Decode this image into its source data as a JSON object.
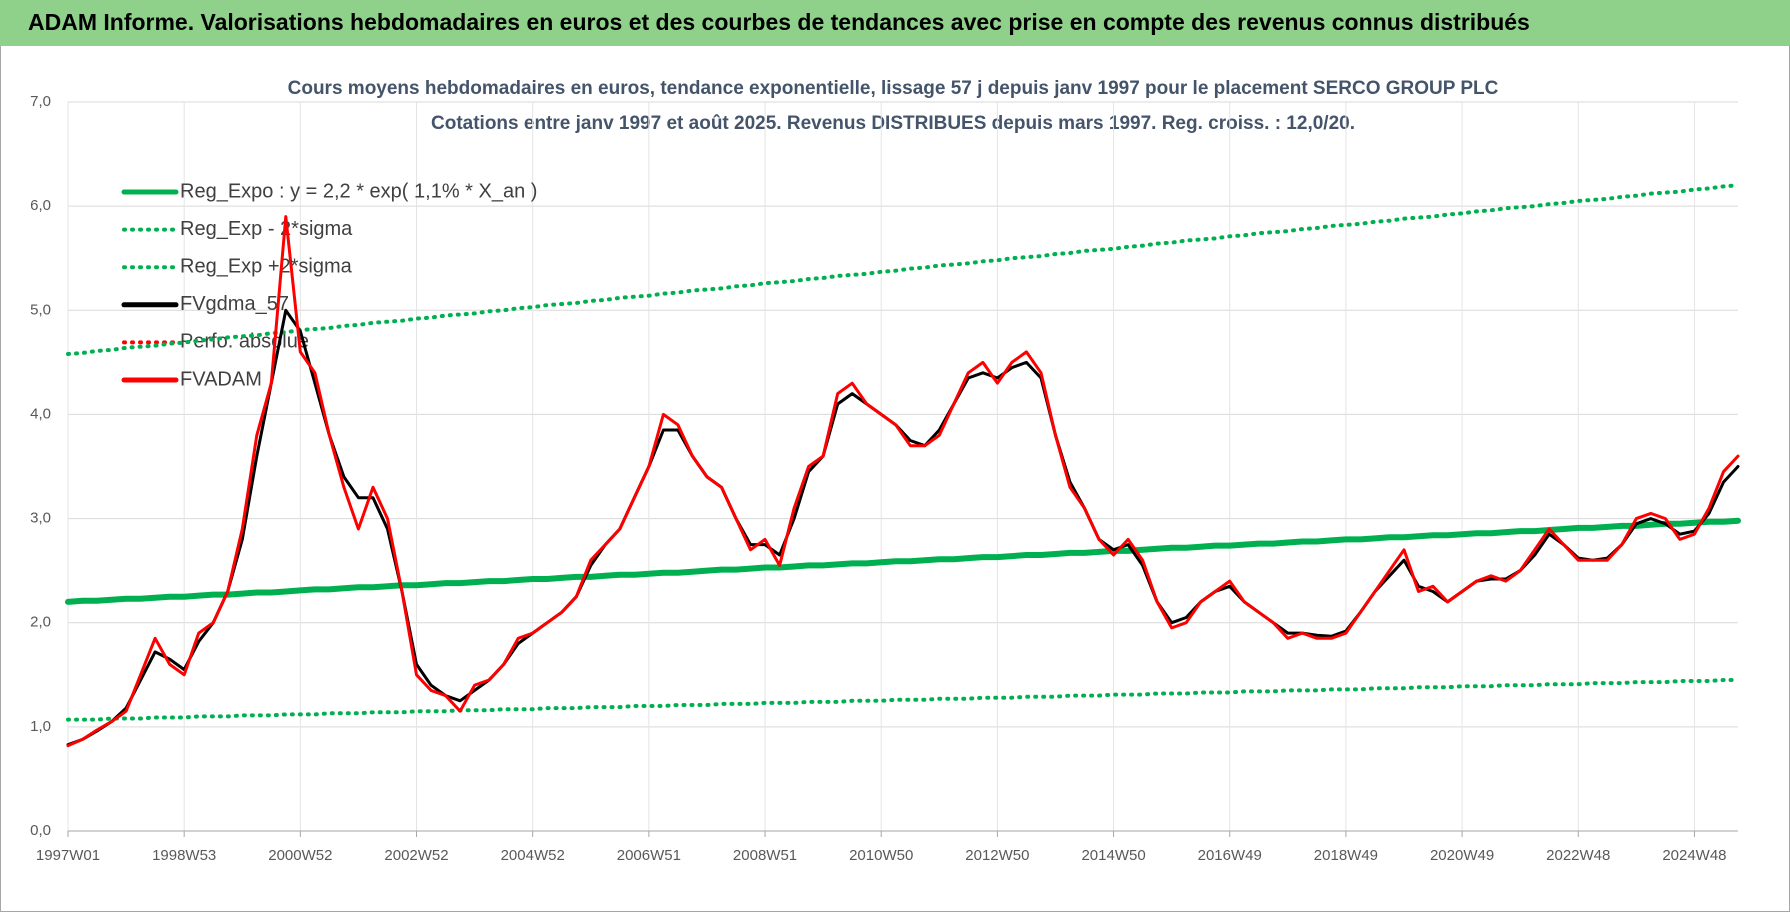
{
  "chart_data": {
    "type": "line",
    "title": "ADAM Informe. Valorisations hebdomadaires en euros et des courbes de tendances avec prise en compte des revenus connus distribués",
    "subtitle": [
      "Cours moyens hebdomadaires en euros, tendance exponentielle, lissage 57 j depuis janv 1997  pour le placement SERCO GROUP PLC",
      "Cotations entre janv 1997 et août 2025.  Revenus DISTRIBUES depuis mars 1997. Reg. croiss. : 12,0/20."
    ],
    "categories": [
      "1997W01",
      null,
      null,
      null,
      null,
      null,
      null,
      null,
      "1998W53",
      null,
      null,
      null,
      null,
      null,
      null,
      null,
      "2000W52",
      null,
      null,
      null,
      null,
      null,
      null,
      null,
      "2002W52",
      null,
      null,
      null,
      null,
      null,
      null,
      null,
      "2004W52",
      null,
      null,
      null,
      null,
      null,
      null,
      null,
      "2006W51",
      null,
      null,
      null,
      null,
      null,
      null,
      null,
      "2008W51",
      null,
      null,
      null,
      null,
      null,
      null,
      null,
      "2010W50",
      null,
      null,
      null,
      null,
      null,
      null,
      null,
      "2012W50",
      null,
      null,
      null,
      null,
      null,
      null,
      null,
      "2014W50",
      null,
      null,
      null,
      null,
      null,
      null,
      null,
      "2016W49",
      null,
      null,
      null,
      null,
      null,
      null,
      null,
      "2018W49",
      null,
      null,
      null,
      null,
      null,
      null,
      null,
      "2020W49",
      null,
      null,
      null,
      null,
      null,
      null,
      null,
      "2022W48",
      null,
      null,
      null,
      null,
      null,
      null,
      null,
      "2024W48",
      null,
      null,
      null
    ],
    "ylim": [
      0,
      7
    ],
    "yticks": [
      {
        "value": 0,
        "label": "0,0"
      },
      {
        "value": 1,
        "label": "1,0"
      },
      {
        "value": 2,
        "label": "2,0"
      },
      {
        "value": 3,
        "label": "3,0"
      },
      {
        "value": 4,
        "label": "4,0"
      },
      {
        "value": 5,
        "label": "5,0"
      },
      {
        "value": 6,
        "label": "6,0"
      },
      {
        "value": 7,
        "label": "7,0"
      }
    ],
    "grid": true,
    "legend": "upper left",
    "series": [
      {
        "name": "Reg_Expo : y = 2,2 * exp( 1,1% *  X_an )",
        "color": "#00b050",
        "style": "solid",
        "values": [
          2.2,
          2.21,
          2.21,
          2.22,
          2.23,
          2.23,
          2.24,
          2.25,
          2.25,
          2.26,
          2.27,
          2.27,
          2.28,
          2.29,
          2.29,
          2.3,
          2.31,
          2.32,
          2.32,
          2.33,
          2.34,
          2.34,
          2.35,
          2.36,
          2.36,
          2.37,
          2.38,
          2.38,
          2.39,
          2.4,
          2.4,
          2.41,
          2.42,
          2.42,
          2.43,
          2.44,
          2.44,
          2.45,
          2.46,
          2.46,
          2.47,
          2.48,
          2.48,
          2.49,
          2.5,
          2.51,
          2.51,
          2.52,
          2.53,
          2.53,
          2.54,
          2.55,
          2.55,
          2.56,
          2.57,
          2.57,
          2.58,
          2.59,
          2.59,
          2.6,
          2.61,
          2.61,
          2.62,
          2.63,
          2.63,
          2.64,
          2.65,
          2.65,
          2.66,
          2.67,
          2.67,
          2.68,
          2.69,
          2.69,
          2.7,
          2.71,
          2.72,
          2.72,
          2.73,
          2.74,
          2.74,
          2.75,
          2.76,
          2.76,
          2.77,
          2.78,
          2.78,
          2.79,
          2.8,
          2.8,
          2.81,
          2.82,
          2.82,
          2.83,
          2.84,
          2.84,
          2.85,
          2.86,
          2.86,
          2.87,
          2.88,
          2.88,
          2.89,
          2.9,
          2.91,
          2.91,
          2.92,
          2.93,
          2.93,
          2.94,
          2.95,
          2.95,
          2.96,
          2.97,
          2.97,
          2.98
        ]
      },
      {
        "name": "Reg_Exp - 2*sigma",
        "color": "#00b050",
        "style": "dotted",
        "values": [
          1.07,
          1.07,
          1.07,
          1.08,
          1.08,
          1.08,
          1.09,
          1.09,
          1.09,
          1.1,
          1.1,
          1.1,
          1.11,
          1.11,
          1.11,
          1.12,
          1.12,
          1.12,
          1.13,
          1.13,
          1.13,
          1.14,
          1.14,
          1.14,
          1.15,
          1.15,
          1.15,
          1.16,
          1.16,
          1.16,
          1.17,
          1.17,
          1.17,
          1.18,
          1.18,
          1.18,
          1.19,
          1.19,
          1.19,
          1.2,
          1.2,
          1.2,
          1.21,
          1.21,
          1.21,
          1.22,
          1.22,
          1.22,
          1.23,
          1.23,
          1.23,
          1.24,
          1.24,
          1.24,
          1.25,
          1.25,
          1.25,
          1.26,
          1.26,
          1.26,
          1.27,
          1.27,
          1.27,
          1.28,
          1.28,
          1.28,
          1.29,
          1.29,
          1.29,
          1.3,
          1.3,
          1.3,
          1.31,
          1.31,
          1.31,
          1.32,
          1.32,
          1.32,
          1.33,
          1.33,
          1.33,
          1.34,
          1.34,
          1.34,
          1.35,
          1.35,
          1.35,
          1.36,
          1.36,
          1.36,
          1.37,
          1.37,
          1.37,
          1.38,
          1.38,
          1.38,
          1.39,
          1.39,
          1.39,
          1.4,
          1.4,
          1.4,
          1.41,
          1.41,
          1.41,
          1.42,
          1.42,
          1.42,
          1.43,
          1.43,
          1.43,
          1.44,
          1.44,
          1.44,
          1.45,
          1.45
        ]
      },
      {
        "name": "Reg_Exp +2*sigma",
        "color": "#00b050",
        "style": "dotted",
        "values": [
          4.58,
          4.59,
          4.61,
          4.62,
          4.64,
          4.65,
          4.66,
          4.68,
          4.69,
          4.71,
          4.72,
          4.74,
          4.75,
          4.76,
          4.78,
          4.79,
          4.81,
          4.82,
          4.83,
          4.85,
          4.86,
          4.88,
          4.89,
          4.9,
          4.92,
          4.93,
          4.95,
          4.96,
          4.97,
          4.99,
          5.0,
          5.02,
          5.03,
          5.05,
          5.06,
          5.07,
          5.09,
          5.1,
          5.12,
          5.13,
          5.14,
          5.16,
          5.17,
          5.19,
          5.2,
          5.21,
          5.23,
          5.24,
          5.26,
          5.27,
          5.28,
          5.3,
          5.31,
          5.33,
          5.34,
          5.35,
          5.37,
          5.38,
          5.4,
          5.41,
          5.43,
          5.44,
          5.45,
          5.47,
          5.48,
          5.5,
          5.51,
          5.52,
          5.54,
          5.55,
          5.57,
          5.58,
          5.59,
          5.61,
          5.62,
          5.64,
          5.65,
          5.67,
          5.68,
          5.69,
          5.71,
          5.72,
          5.74,
          5.75,
          5.76,
          5.78,
          5.79,
          5.81,
          5.82,
          5.83,
          5.85,
          5.86,
          5.88,
          5.89,
          5.9,
          5.92,
          5.93,
          5.95,
          5.96,
          5.98,
          5.99,
          6.0,
          6.02,
          6.03,
          6.05,
          6.06,
          6.07,
          6.09,
          6.1,
          6.12,
          6.13,
          6.14,
          6.16,
          6.17,
          6.19,
          6.2
        ]
      },
      {
        "name": "FVgdma_57",
        "color": "#000000",
        "style": "solid",
        "values": [
          0.83,
          0.88,
          0.96,
          1.05,
          1.18,
          1.45,
          1.72,
          1.65,
          1.55,
          1.82,
          2.0,
          2.3,
          2.8,
          3.6,
          4.3,
          5.0,
          4.8,
          4.3,
          3.8,
          3.4,
          3.2,
          3.2,
          2.9,
          2.3,
          1.6,
          1.4,
          1.3,
          1.25,
          1.35,
          1.45,
          1.6,
          1.8,
          1.9,
          2.0,
          2.1,
          2.25,
          2.55,
          2.75,
          2.9,
          3.2,
          3.5,
          3.85,
          3.85,
          3.6,
          3.4,
          3.3,
          3.0,
          2.75,
          2.75,
          2.65,
          3.0,
          3.45,
          3.6,
          4.1,
          4.2,
          4.1,
          4.0,
          3.9,
          3.75,
          3.7,
          3.85,
          4.1,
          4.35,
          4.4,
          4.35,
          4.45,
          4.5,
          4.35,
          3.8,
          3.35,
          3.1,
          2.8,
          2.7,
          2.75,
          2.55,
          2.2,
          2.0,
          2.05,
          2.2,
          2.3,
          2.35,
          2.2,
          2.1,
          2.0,
          1.9,
          1.9,
          1.88,
          1.87,
          1.92,
          2.1,
          2.3,
          2.45,
          2.6,
          2.35,
          2.3,
          2.2,
          2.3,
          2.4,
          2.42,
          2.42,
          2.5,
          2.65,
          2.85,
          2.75,
          2.62,
          2.6,
          2.62,
          2.75,
          2.95,
          3.0,
          2.95,
          2.85,
          2.88,
          3.05,
          3.35,
          3.5
        ]
      },
      {
        "name": "Perfo. absolue",
        "color": "#ff0000",
        "style": "dotted",
        "values": [
          null,
          null,
          null,
          null,
          null,
          null,
          null,
          null,
          null,
          null,
          null,
          null,
          null,
          null,
          null,
          null,
          null,
          null,
          null,
          null,
          null,
          null,
          null,
          null,
          null,
          null,
          null,
          null,
          null,
          null,
          null,
          null,
          null,
          null,
          null,
          null,
          null,
          null,
          null,
          null,
          null,
          null,
          null,
          null,
          null,
          null,
          null,
          null,
          null,
          null,
          null,
          null,
          null,
          null,
          null,
          null,
          null,
          null,
          null,
          null,
          null,
          null,
          null,
          null,
          null,
          null,
          null,
          null,
          null,
          null,
          null,
          null,
          null,
          null,
          null,
          null,
          null,
          null,
          null,
          null,
          null,
          null,
          null,
          null,
          null,
          null,
          null,
          null,
          null,
          null,
          null,
          null,
          null,
          null,
          null,
          null,
          null,
          null,
          null,
          null,
          null,
          null,
          null,
          null,
          null,
          null,
          null,
          null,
          null,
          null,
          null,
          null,
          null,
          null,
          null,
          null
        ]
      },
      {
        "name": "FVADAM",
        "color": "#ff0000",
        "style": "solid",
        "values": [
          0.82,
          0.88,
          0.97,
          1.05,
          1.15,
          1.5,
          1.85,
          1.6,
          1.5,
          1.9,
          2.0,
          2.3,
          2.9,
          3.8,
          4.3,
          5.9,
          4.6,
          4.4,
          3.8,
          3.3,
          2.9,
          3.3,
          3.0,
          2.3,
          1.5,
          1.35,
          1.3,
          1.15,
          1.4,
          1.45,
          1.6,
          1.85,
          1.9,
          2.0,
          2.1,
          2.25,
          2.6,
          2.75,
          2.9,
          3.2,
          3.5,
          4.0,
          3.9,
          3.6,
          3.4,
          3.3,
          3.0,
          2.7,
          2.8,
          2.55,
          3.1,
          3.5,
          3.6,
          4.2,
          4.3,
          4.1,
          4.0,
          3.9,
          3.7,
          3.7,
          3.8,
          4.1,
          4.4,
          4.5,
          4.3,
          4.5,
          4.6,
          4.4,
          3.8,
          3.3,
          3.1,
          2.8,
          2.65,
          2.8,
          2.6,
          2.2,
          1.95,
          2.0,
          2.2,
          2.3,
          2.4,
          2.2,
          2.1,
          2.0,
          1.85,
          1.9,
          1.85,
          1.85,
          1.9,
          2.1,
          2.3,
          2.5,
          2.7,
          2.3,
          2.35,
          2.2,
          2.3,
          2.4,
          2.45,
          2.4,
          2.5,
          2.7,
          2.9,
          2.75,
          2.6,
          2.6,
          2.6,
          2.75,
          3.0,
          3.05,
          3.0,
          2.8,
          2.85,
          3.1,
          3.45,
          3.6
        ]
      }
    ]
  }
}
